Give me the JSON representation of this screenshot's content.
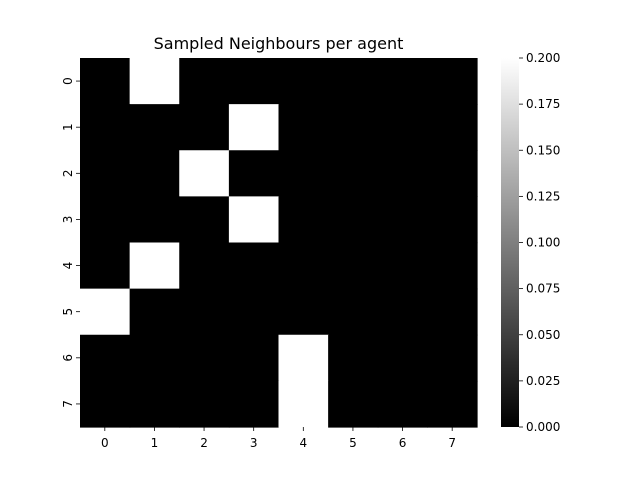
{
  "chart_data": {
    "type": "heatmap",
    "title": "Sampled Neighbours per agent",
    "xlabel": "",
    "ylabel": "",
    "x_ticks": [
      "0",
      "1",
      "2",
      "3",
      "4",
      "5",
      "6",
      "7"
    ],
    "y_ticks": [
      "0",
      "1",
      "2",
      "3",
      "4",
      "5",
      "6",
      "7"
    ],
    "values": [
      [
        0,
        0.2,
        0,
        0,
        0,
        0,
        0,
        0
      ],
      [
        0,
        0,
        0,
        0.2,
        0,
        0,
        0,
        0
      ],
      [
        0,
        0,
        0.2,
        0,
        0,
        0,
        0,
        0
      ],
      [
        0,
        0,
        0,
        0.2,
        0,
        0,
        0,
        0
      ],
      [
        0,
        0.2,
        0,
        0,
        0,
        0,
        0,
        0
      ],
      [
        0.2,
        0,
        0,
        0,
        0,
        0,
        0,
        0
      ],
      [
        0,
        0,
        0,
        0,
        0.2,
        0,
        0,
        0
      ],
      [
        0,
        0,
        0,
        0,
        0.2,
        0,
        0,
        0
      ]
    ],
    "colorbar": {
      "min": 0.0,
      "max": 0.2,
      "tick_values": [
        0.0,
        0.025,
        0.05,
        0.075,
        0.1,
        0.125,
        0.15,
        0.175,
        0.2
      ],
      "tick_labels": [
        "0.000",
        "0.025",
        "0.050",
        "0.075",
        "0.100",
        "0.125",
        "0.150",
        "0.175",
        "0.200"
      ],
      "colormap": "gray",
      "low_color": "#000000",
      "high_color": "#ffffff"
    },
    "grid": false,
    "legend": "none"
  }
}
